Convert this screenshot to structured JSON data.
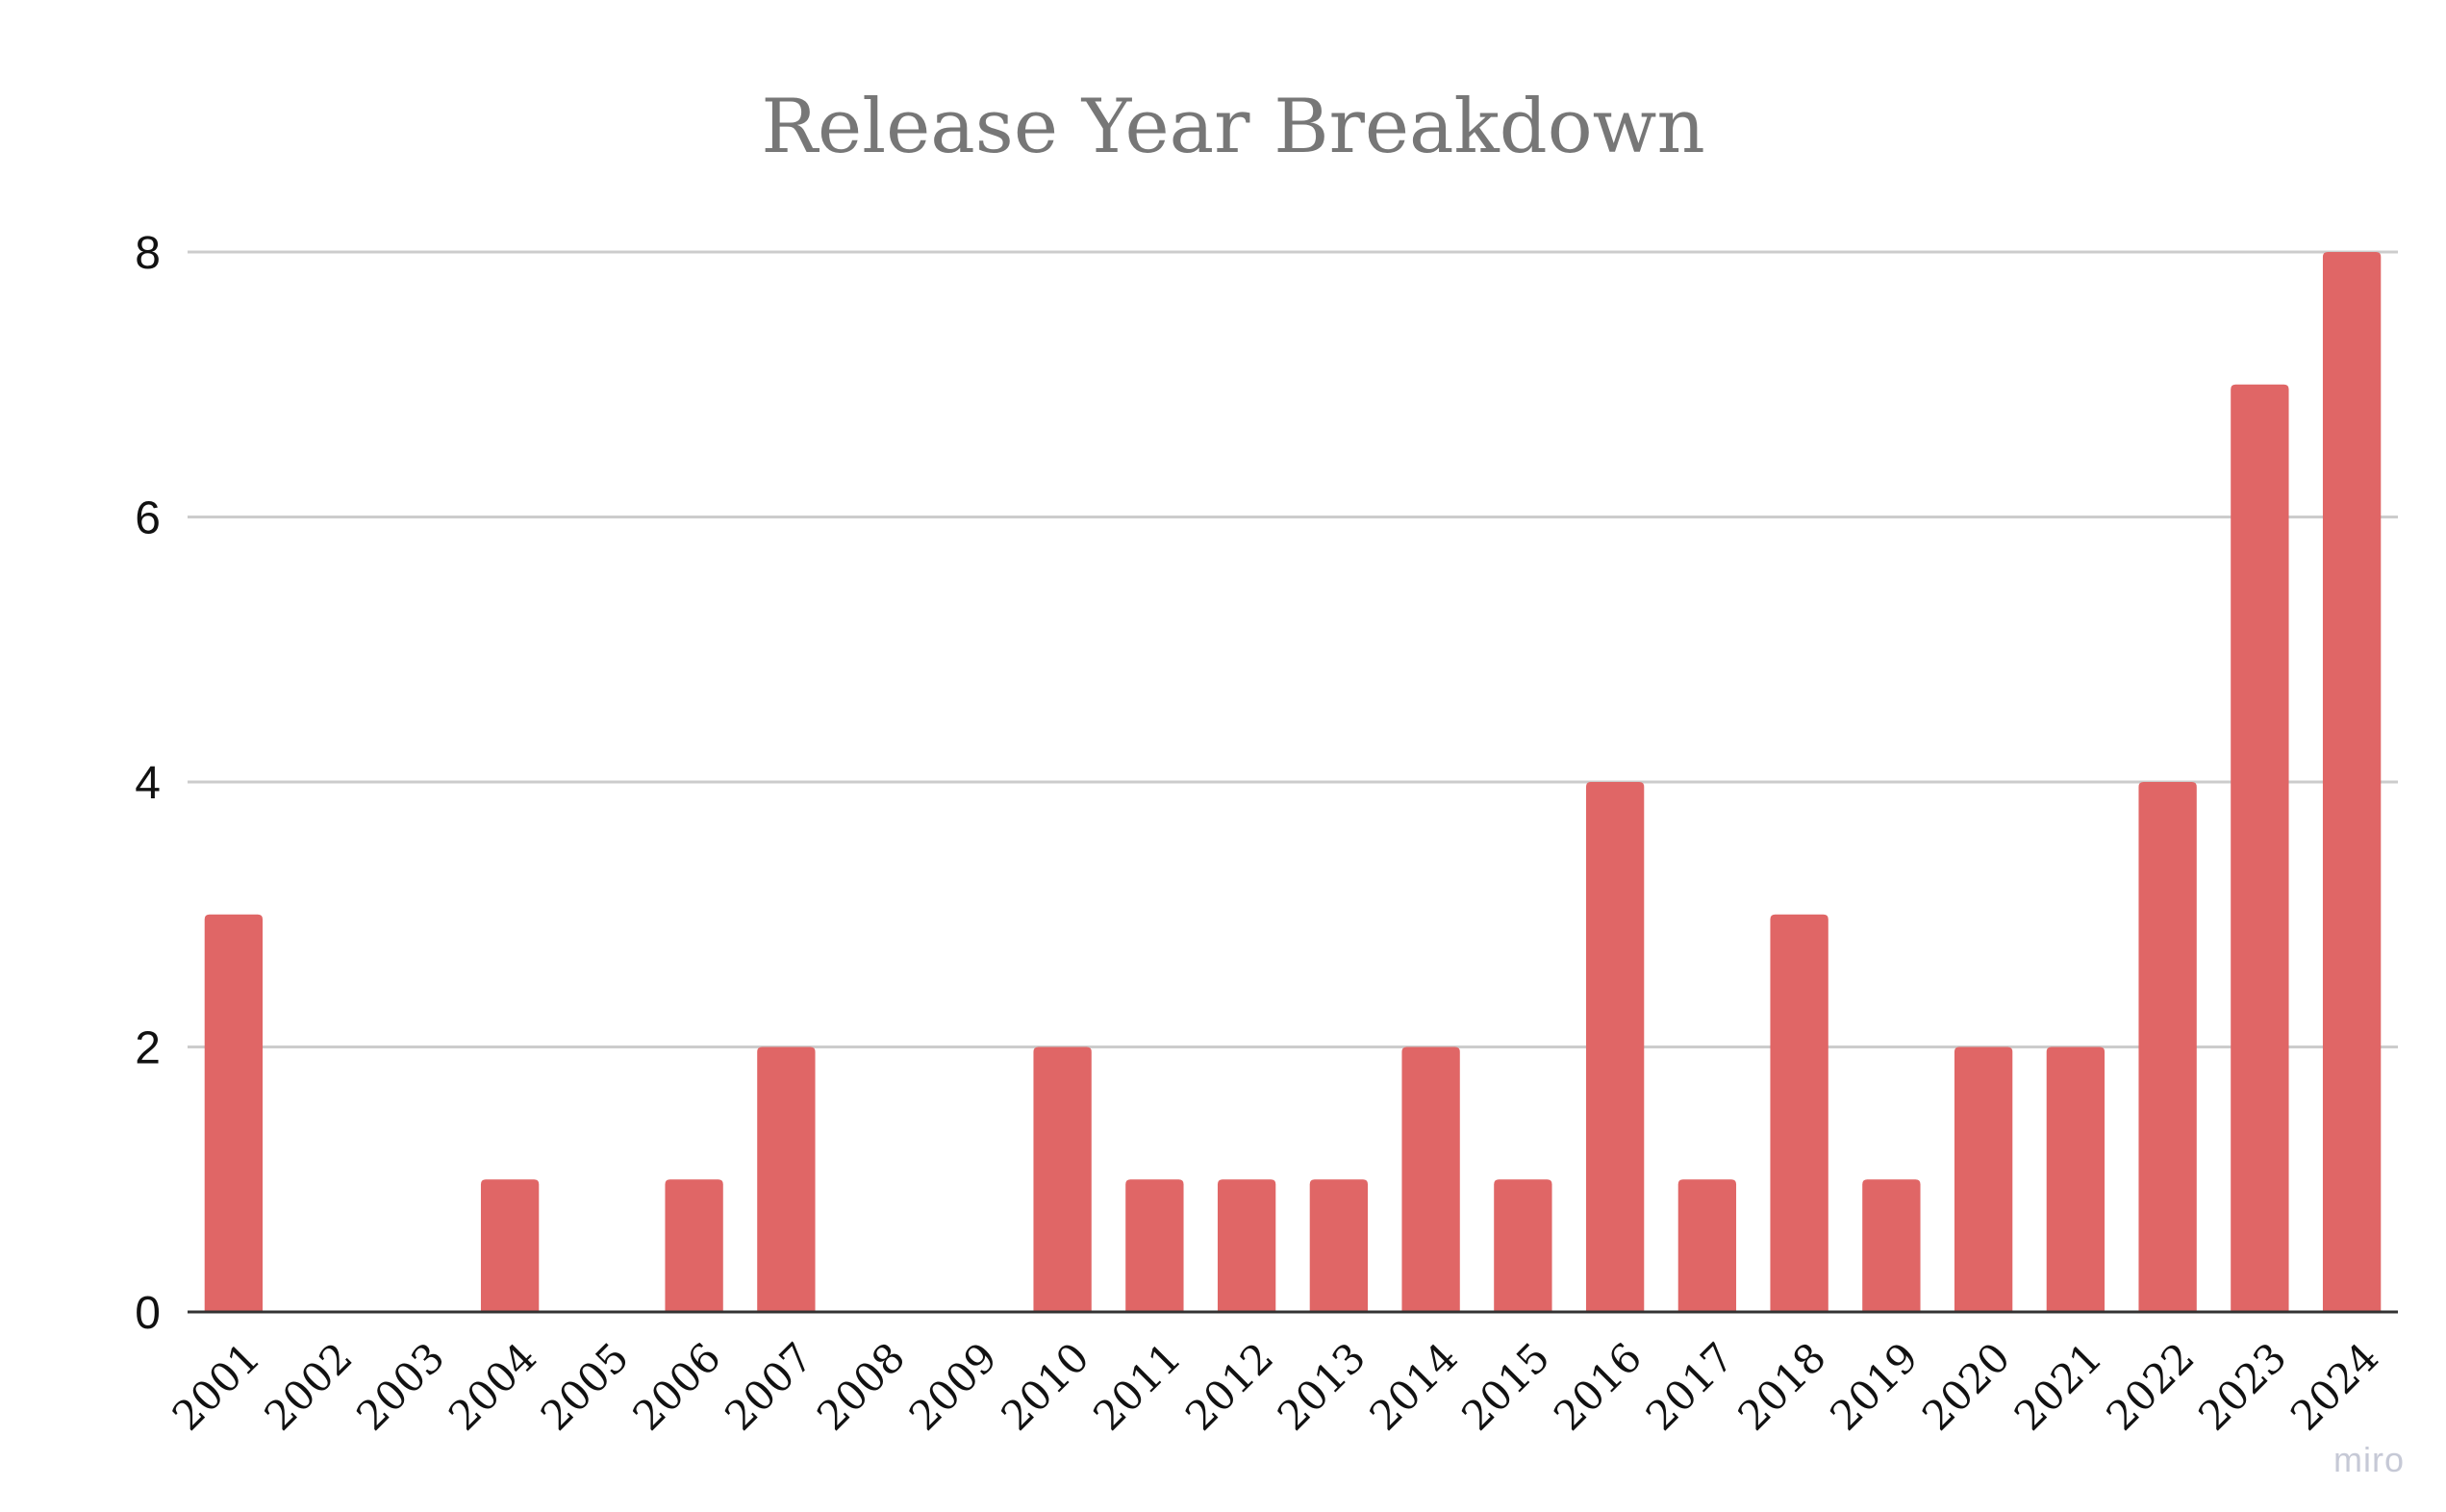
{
  "chart_data": {
    "type": "bar",
    "title": "Release Year Breakdown",
    "xlabel": "",
    "ylabel": "",
    "categories": [
      "2001",
      "2002",
      "2003",
      "2004",
      "2005",
      "2006",
      "2007",
      "2008",
      "2009",
      "2010",
      "2011",
      "2012",
      "2013",
      "2014",
      "2015",
      "2016",
      "2017",
      "2018",
      "2019",
      "2020",
      "2021",
      "2022",
      "2023",
      "2024"
    ],
    "values": [
      3,
      0,
      0,
      1,
      0,
      1,
      2,
      0,
      0,
      2,
      1,
      1,
      1,
      2,
      1,
      4,
      1,
      3,
      1,
      2,
      2,
      4,
      7,
      8
    ],
    "ylim": [
      0,
      8
    ],
    "yticks": [
      "0",
      "2",
      "4",
      "6",
      "8"
    ],
    "grid": true,
    "legend": "none",
    "bar_color": "#e06666",
    "grid_color": "#cccccc",
    "axis_color": "#333333",
    "title_color": "#777777"
  },
  "watermark": "miro"
}
